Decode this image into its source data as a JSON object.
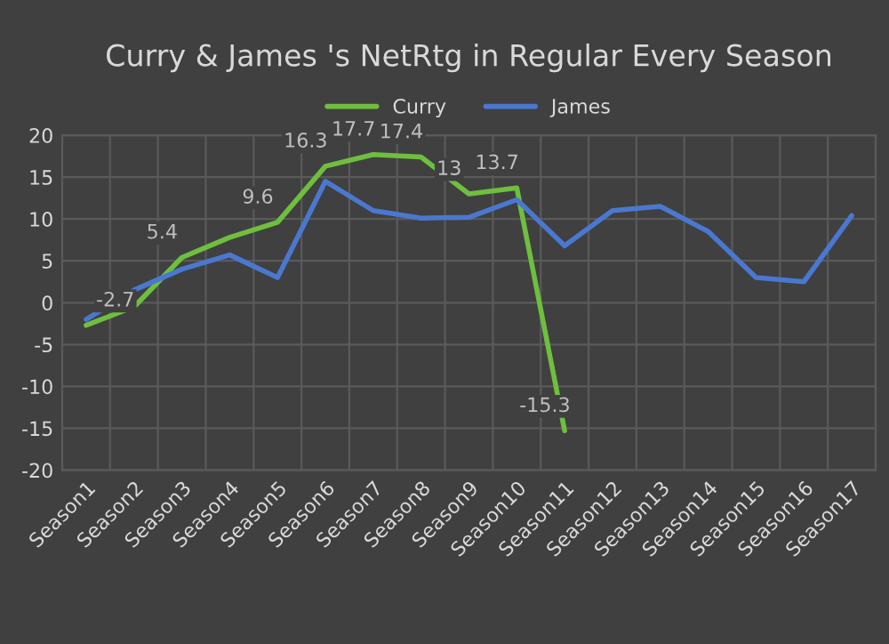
{
  "chart_data": {
    "type": "line",
    "title": "Curry & James 's NetRtg in Regular Every Season",
    "categories": [
      "Season1",
      "Season2",
      "Season3",
      "Season4",
      "Season5",
      "Season6",
      "Season7",
      "Season8",
      "Season9",
      "Season10",
      "Season11",
      "Season12",
      "Season13",
      "Season14",
      "Season15",
      "Season16",
      "Season17"
    ],
    "series": [
      {
        "name": "Curry",
        "color": "#6fbf3f",
        "values": [
          -2.7,
          -0.5,
          5.4,
          7.8,
          9.6,
          16.3,
          17.7,
          17.4,
          13,
          13.7,
          -15.3,
          null,
          null,
          null,
          null,
          null,
          null
        ],
        "value_labels": [
          "-2.7",
          null,
          "5.4",
          null,
          "9.6",
          "16.3",
          "17.7",
          "17.4",
          "13",
          "13.7",
          "-15.3",
          null,
          null,
          null,
          null,
          null,
          null
        ]
      },
      {
        "name": "James",
        "color": "#4a78d0",
        "values": [
          -2,
          1.5,
          4,
          5.7,
          3,
          14.5,
          11,
          10.1,
          10.2,
          12.3,
          6.8,
          11,
          11.5,
          8.5,
          3,
          2.5,
          10.4
        ]
      }
    ],
    "ylim": [
      -20,
      20
    ],
    "yticks": [
      -20,
      -15,
      -10,
      -5,
      0,
      5,
      10,
      15,
      20
    ],
    "grid": true,
    "legend": "top",
    "marker": "none",
    "line_style": "solid"
  }
}
